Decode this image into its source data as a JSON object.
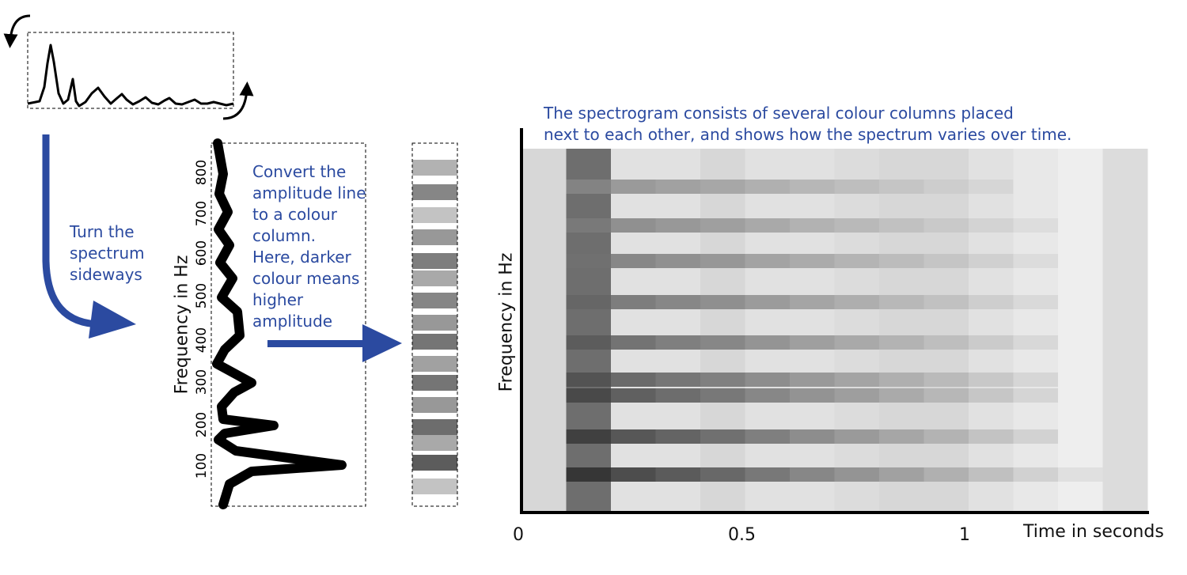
{
  "captions": {
    "turn": "Turn the\nspectrum\nsideways",
    "convert": "Convert the\namplitude line\nto a colour\ncolumn.\nHere, darker\ncolour means\nhigher\namplitude",
    "spectrogram": "The spectrogram consists of several colour columns placed\nnext to each other, and shows how the spectrum varies over time."
  },
  "rotated_spectrum": {
    "ylabel": "Frequency in Hz",
    "yticks": [
      "100",
      "200",
      "300",
      "400",
      "500",
      "600",
      "700",
      "800"
    ]
  },
  "spectrogram": {
    "ylabel": "Frequency in Hz",
    "xlabel": "Time in seconds",
    "xticks": [
      "0",
      "0.5",
      "1"
    ]
  },
  "colors": {
    "accent": "#2b4aa0",
    "line": "#000000"
  }
}
